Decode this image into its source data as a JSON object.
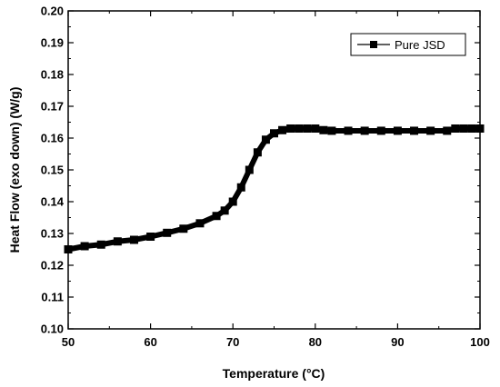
{
  "chart_data": {
    "type": "line",
    "title": "",
    "xlabel": "Temperature (°C)",
    "ylabel": "Heat Flow (exo down) (W/g)",
    "xlim": [
      50,
      100
    ],
    "ylim": [
      0.1,
      0.2
    ],
    "x_ticks": [
      "50",
      "60",
      "70",
      "80",
      "90",
      "100"
    ],
    "y_ticks": [
      "0.10",
      "0.11",
      "0.12",
      "0.13",
      "0.14",
      "0.15",
      "0.16",
      "0.17",
      "0.18",
      "0.19",
      "0.20"
    ],
    "grid": false,
    "legend": {
      "position": "top-right",
      "entries": [
        "Pure JSD"
      ]
    },
    "series": [
      {
        "name": "Pure JSD",
        "color": "#000000",
        "marker": "square",
        "x": [
          50,
          52,
          54,
          56,
          58,
          60,
          62,
          64,
          66,
          68,
          69,
          70,
          71,
          72,
          73,
          74,
          75,
          76,
          77,
          78,
          79,
          80,
          81,
          82,
          84,
          86,
          88,
          90,
          92,
          94,
          96,
          97,
          98,
          99,
          100
        ],
        "y": [
          0.125,
          0.126,
          0.1265,
          0.1275,
          0.128,
          0.129,
          0.1302,
          0.1315,
          0.1332,
          0.1355,
          0.1372,
          0.14,
          0.1445,
          0.15,
          0.1555,
          0.1595,
          0.1615,
          0.1625,
          0.163,
          0.163,
          0.163,
          0.163,
          0.1625,
          0.1623,
          0.1623,
          0.1623,
          0.1623,
          0.1623,
          0.1623,
          0.1623,
          0.1623,
          0.163,
          0.163,
          0.163,
          0.163
        ]
      }
    ]
  }
}
